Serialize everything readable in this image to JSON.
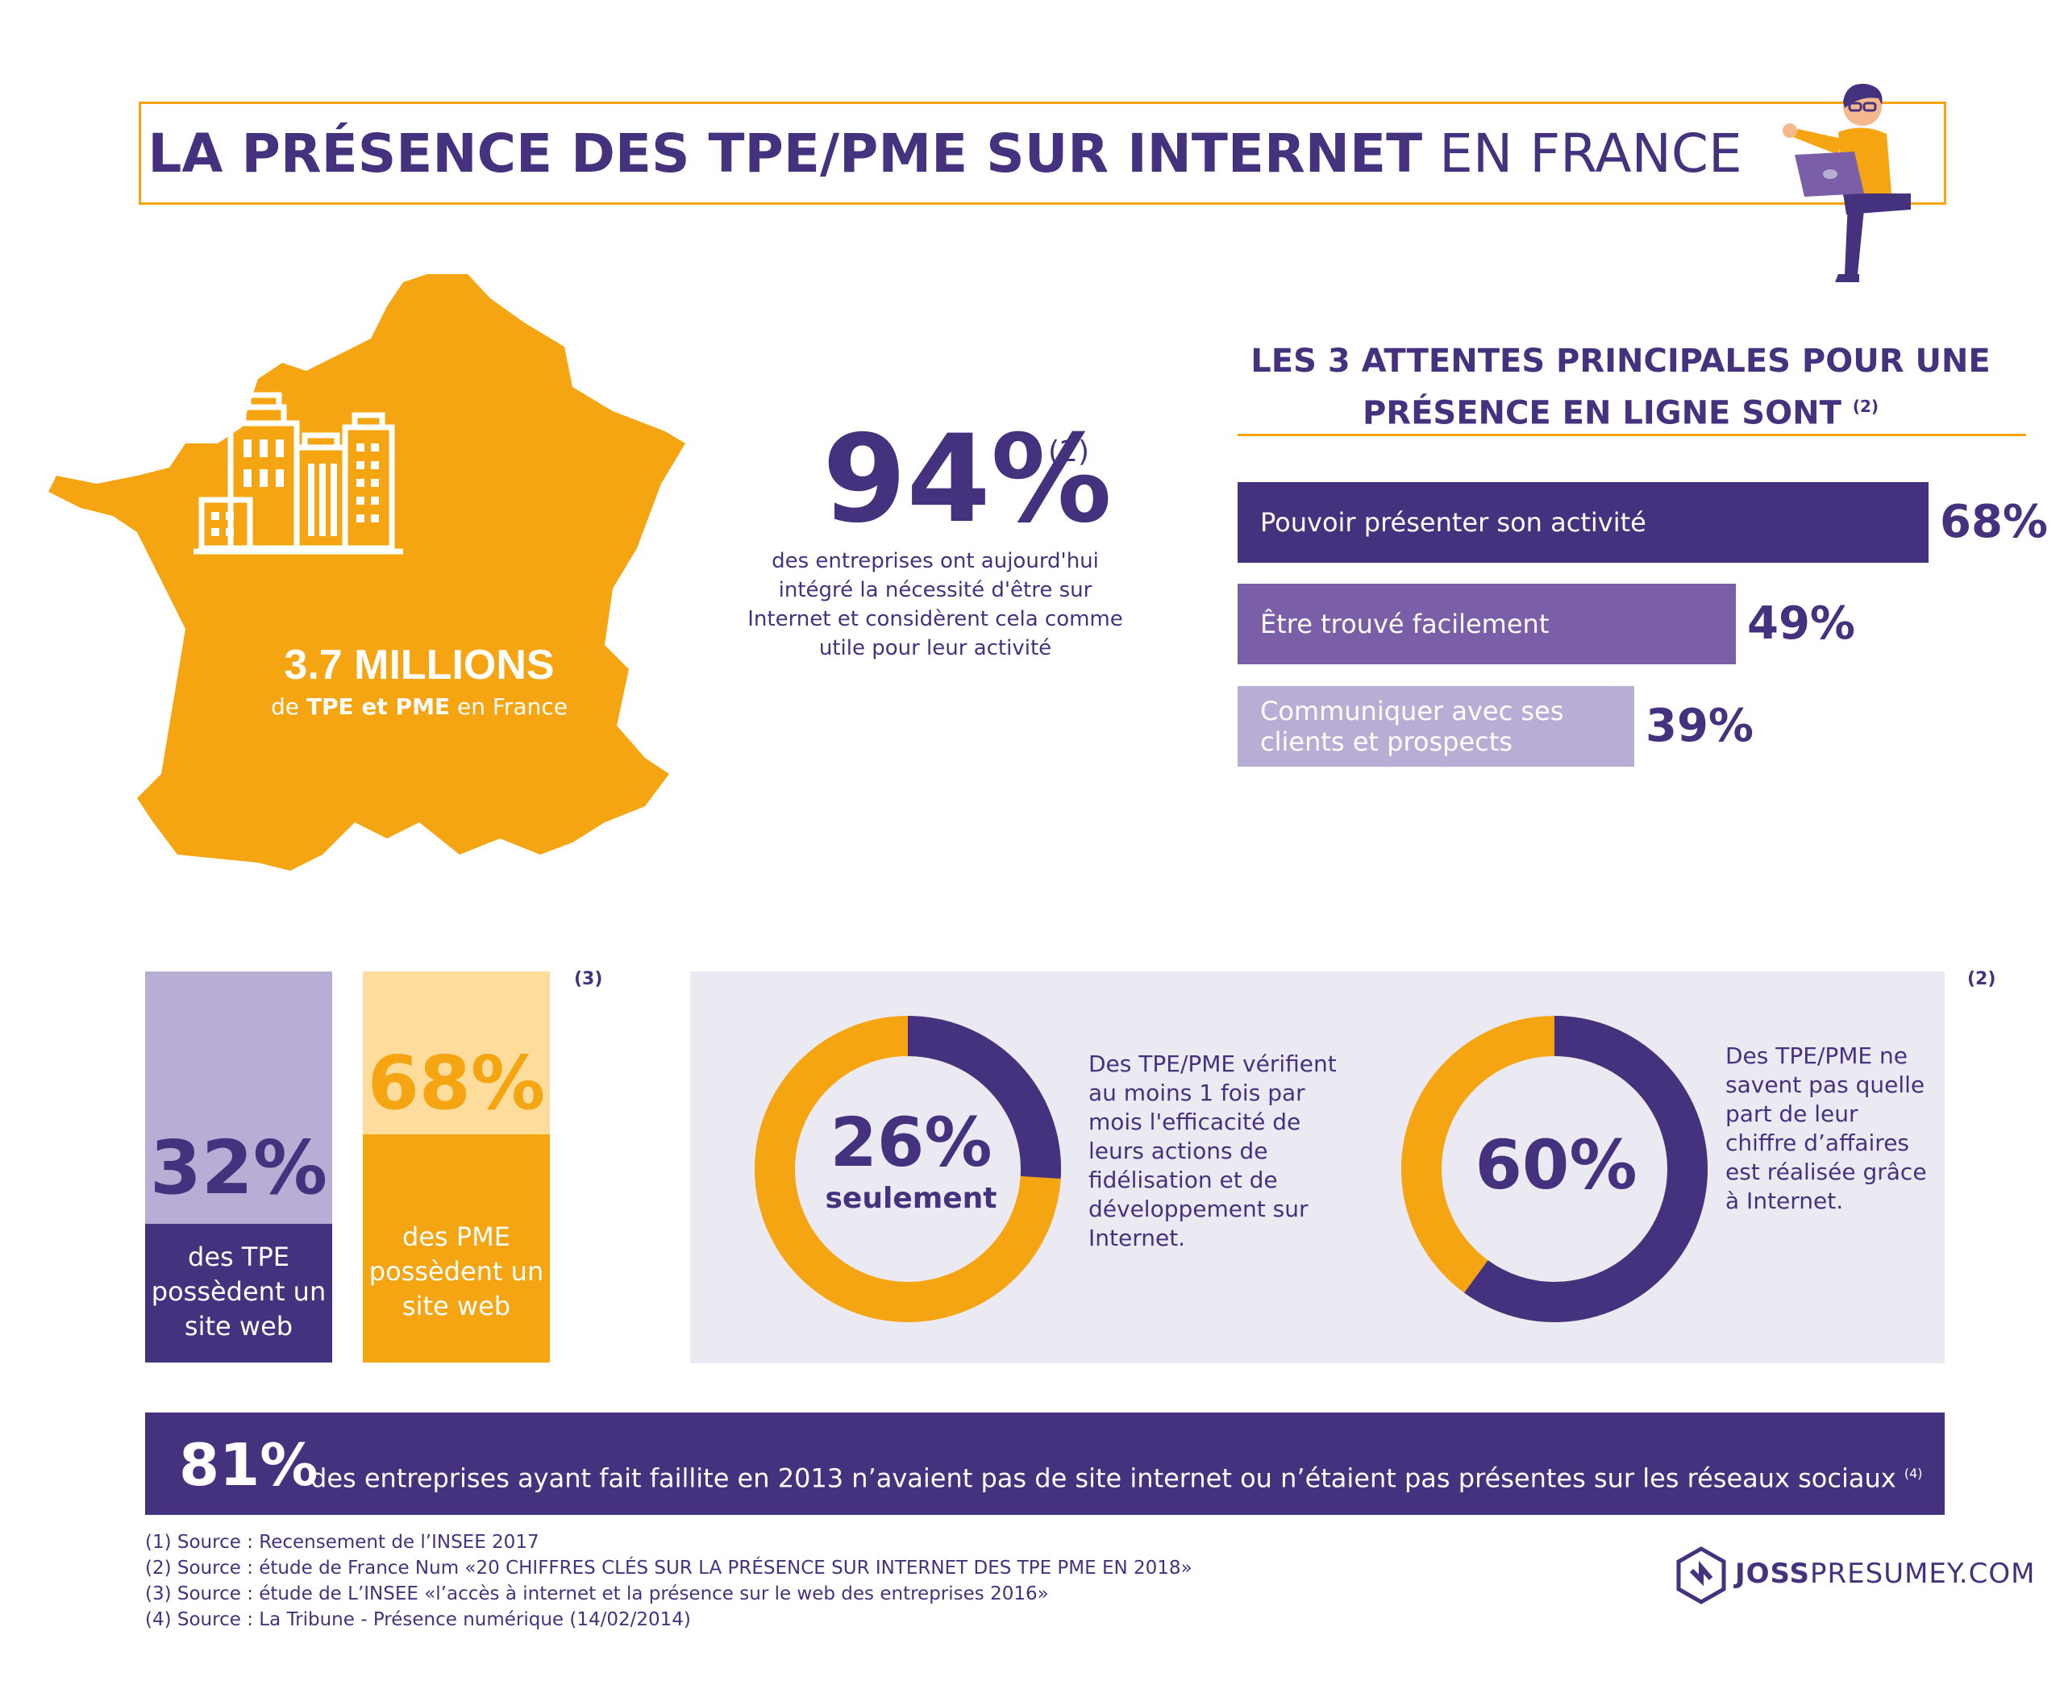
{
  "title": {
    "bold": "LA PRÉSENCE DES TPE/PME SUR INTERNET",
    "light": "EN FRANCE"
  },
  "map": {
    "big_number": "3.7 MILLIONS",
    "sub_prefix": "de",
    "sub_bold": "TPE et PME",
    "sub_suffix": "en France"
  },
  "stat94": {
    "value": "94%",
    "ref": "(2)",
    "text": "des entreprises ont aujourd'hui intégré la nécessité d'être sur Internet et considèrent cela comme utile pour leur activité"
  },
  "expectations": {
    "title": "LES 3 ATTENTES PRINCIPALES POUR UNE PRÉSENCE EN LIGNE SONT",
    "ref": "(2)"
  },
  "site_web": {
    "ref": "(3)",
    "tpe": {
      "value": "32%",
      "label": "des TPE possèdent un site web"
    },
    "pme": {
      "value": "68%",
      "label": "des PME possèdent un site web"
    }
  },
  "donuts": {
    "ref": "(2)",
    "d1": {
      "value": "26%",
      "sub": "seulement",
      "text": "Des TPE/PME vérifient au moins 1 fois par mois l'efficacité de leurs actions de fidélisation et de développement sur Internet."
    },
    "d2": {
      "value": "60%",
      "text": "Des TPE/PME ne savent pas quelle part de leur chiffre d’affaires est réalisée grâce à Internet."
    }
  },
  "banner": {
    "value": "81%",
    "text": "des entreprises ayant fait faillite en 2013 n’avaient pas de site internet ou n’étaient pas présentes sur les réseaux sociaux",
    "ref": "(4)"
  },
  "sources": [
    "(1) Source : Recensement de l’INSEE 2017",
    "(2) Source : étude  de France Num «20 CHIFFRES CLÉS SUR LA PRÉSENCE SUR INTERNET DES TPE PME EN 2018»",
    "(3) Source : étude de L’INSEE  «l’accès à internet et la présence sur le web des entreprises 2016»",
    "(4) Source : La Tribune - Présence numérique (14/02/2014)"
  ],
  "logo": {
    "bold": "JOSS",
    "light": "PRESUMEY.COM"
  },
  "colors": {
    "purple": "#45327f",
    "purple_mid": "#7a5fa8",
    "purple_light": "#b8aed5",
    "orange": "#f5a412",
    "orange_light": "#fddc9c",
    "panel": "#ebeaf2"
  },
  "chart_data": [
    {
      "type": "bar",
      "orientation": "horizontal",
      "categories": [
        "Pouvoir présenter son activité",
        "Être trouvé facilement",
        "Communiquer avec ses clients et prospects"
      ],
      "values": [
        68,
        49,
        39
      ],
      "labels": [
        "68%",
        "49%",
        "39%"
      ],
      "xlim": [
        0,
        68
      ]
    },
    {
      "type": "bar",
      "categories": [
        "TPE",
        "PME"
      ],
      "values": [
        32,
        68
      ],
      "labels": [
        "32%",
        "68%"
      ],
      "ylim": [
        0,
        100
      ]
    },
    {
      "type": "pie",
      "style": "donut",
      "segments": [
        26,
        74
      ],
      "label": "26%"
    },
    {
      "type": "pie",
      "style": "donut",
      "segments": [
        60,
        40
      ],
      "label": "60%"
    }
  ]
}
